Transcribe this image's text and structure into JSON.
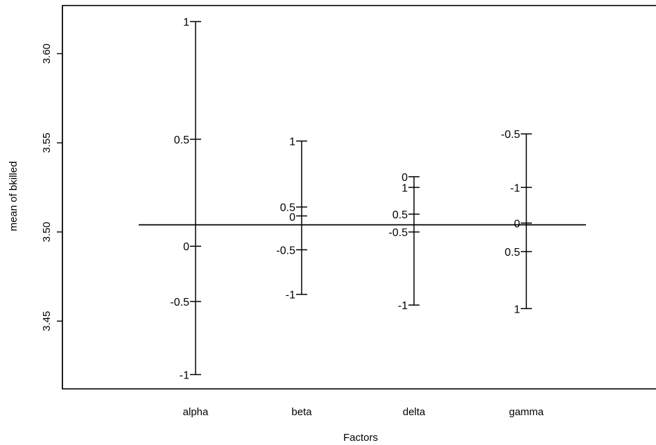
{
  "chart_data": {
    "type": "design_plot",
    "xlabel": "Factors",
    "ylabel": "mean of bkilled",
    "grand_mean": 3.504,
    "ylim": [
      3.412,
      3.627
    ],
    "yticks": [
      "3.45",
      "3.50",
      "3.55",
      "3.60"
    ],
    "ytick_values": [
      3.45,
      3.5,
      3.55,
      3.6
    ],
    "categories": [
      "alpha",
      "beta",
      "delta",
      "gamma"
    ],
    "factors": [
      {
        "name": "alpha",
        "levels": [
          {
            "label": "1",
            "value": 3.618
          },
          {
            "label": "0.5",
            "value": 3.552
          },
          {
            "label": "0",
            "value": 3.492
          },
          {
            "label": "-0.5",
            "value": 3.461
          },
          {
            "label": "-1",
            "value": 3.42
          }
        ]
      },
      {
        "name": "beta",
        "levels": [
          {
            "label": "1",
            "value": 3.551
          },
          {
            "label": "0.5",
            "value": 3.514
          },
          {
            "label": "0",
            "value": 3.509
          },
          {
            "label": "-0.5",
            "value": 3.49
          },
          {
            "label": "-1",
            "value": 3.465
          }
        ]
      },
      {
        "name": "delta",
        "levels": [
          {
            "label": "0",
            "value": 3.531
          },
          {
            "label": "1",
            "value": 3.525
          },
          {
            "label": "0.5",
            "value": 3.51
          },
          {
            "label": "-0.5",
            "value": 3.5
          },
          {
            "label": "-1",
            "value": 3.459
          }
        ]
      },
      {
        "name": "gamma",
        "levels": [
          {
            "label": "-0.5",
            "value": 3.555
          },
          {
            "label": "-1",
            "value": 3.525
          },
          {
            "label": "0",
            "value": 3.505
          },
          {
            "label": "0.5",
            "value": 3.489
          },
          {
            "label": "1",
            "value": 3.457
          }
        ]
      }
    ]
  }
}
